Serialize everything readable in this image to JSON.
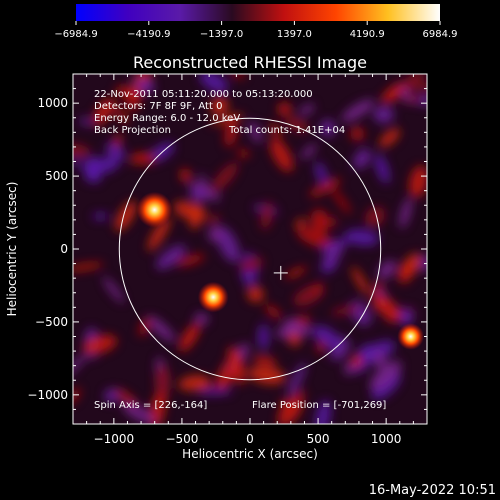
{
  "chart_data": {
    "type": "heatmap",
    "title": "Reconstructed RHESSI Image",
    "xlabel": "Heliocentric X (arcsec)",
    "ylabel": "Heliocentric Y (arcsec)",
    "xlim": [
      -1300,
      1300
    ],
    "ylim": [
      -1200,
      1200
    ],
    "x_ticks": [
      -1000,
      -500,
      0,
      500,
      1000
    ],
    "y_ticks": [
      -1000,
      -500,
      0,
      500,
      1000
    ],
    "x_tick_labels": [
      "−1000",
      "−500",
      "0",
      "500",
      "1000"
    ],
    "y_tick_labels": [
      "−1000",
      "−500",
      "0",
      "500",
      "1000"
    ],
    "colorbar": {
      "min": -6984.9,
      "max": 6984.9,
      "tick_labels": [
        "−6984.9",
        "−4190.9",
        "−1397.0",
        "1397.0",
        "4190.9",
        "6984.9"
      ],
      "tick_values": [
        -6984.9,
        -4190.9,
        -1397.0,
        1397.0,
        4190.9,
        6984.9
      ],
      "colors": [
        "#0000ff",
        "#4000c0",
        "#5a1aa8",
        "#2a0a20",
        "#c01010",
        "#ff4400",
        "#ffc020",
        "#ffffff"
      ]
    },
    "solar_disk": {
      "center": [
        0,
        0
      ],
      "radius_arcsec": 960
    },
    "spin_axis": [
      226,
      -164
    ],
    "bright_sources": [
      {
        "x": -701,
        "y": 269,
        "intensity": 6984.9
      },
      {
        "x": -270,
        "y": -330,
        "intensity": 5200
      },
      {
        "x": 1180,
        "y": -600,
        "intensity": 3800
      }
    ],
    "annotations": {
      "time": "22-Nov-2011 05:11:20.000 to 05:13:20.000",
      "detectors": "Detectors: 7F 8F 9F, Att 0",
      "energy": "Energy Range: 6.0 - 12.0 keV",
      "method": "Back Projection",
      "counts": "Total counts: 1.41E+04",
      "spin_axis_label": "Spin Axis = [226,-164]",
      "flare_position_label": "Flare Position = [-701,269]"
    }
  },
  "footer": {
    "timestamp": "16-May-2022 10:51"
  }
}
